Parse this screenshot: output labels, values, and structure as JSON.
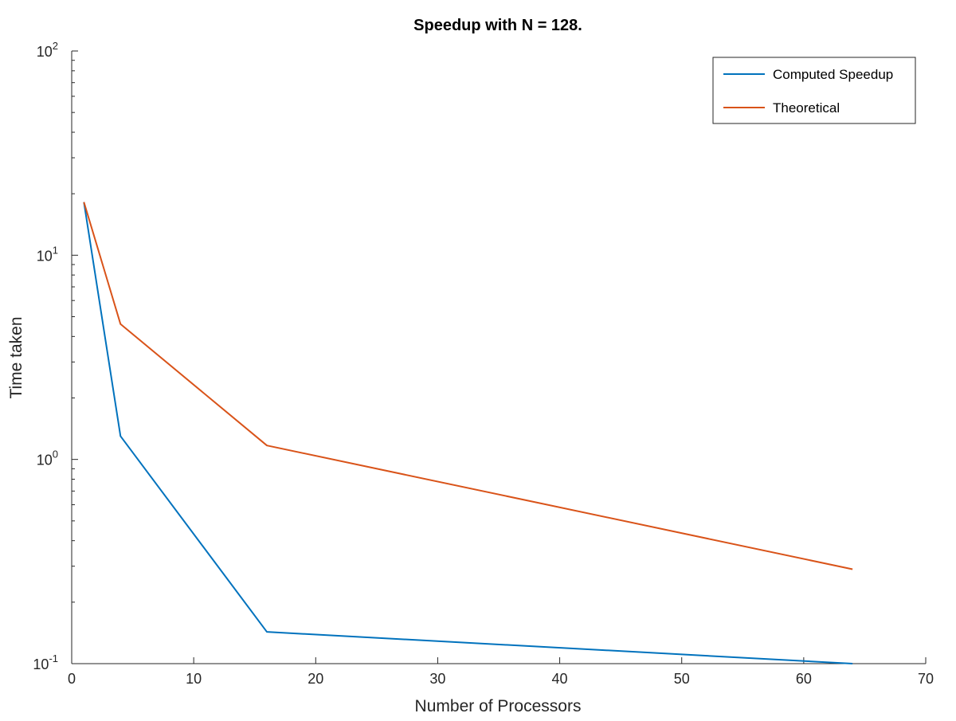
{
  "chart_data": {
    "type": "line",
    "title": "Speedup with N = 128.",
    "xlabel": "Number of Processors",
    "ylabel": "Time taken",
    "xlim": [
      0,
      70
    ],
    "ylim": [
      0.1,
      100
    ],
    "yscale": "log",
    "grid": false,
    "legend_position": "top-right",
    "x_ticks": [
      0,
      10,
      20,
      30,
      40,
      50,
      60,
      70
    ],
    "x_tick_labels": [
      "0",
      "10",
      "20",
      "30",
      "40",
      "50",
      "60",
      "70"
    ],
    "y_ticks": [
      {
        "value": 0.1,
        "base": "10",
        "exp": "-1"
      },
      {
        "value": 1,
        "base": "10",
        "exp": "0"
      },
      {
        "value": 10,
        "base": "10",
        "exp": "1"
      },
      {
        "value": 100,
        "base": "10",
        "exp": "2"
      }
    ],
    "series": [
      {
        "name": "Computed Speedup",
        "color": "#0072BD",
        "x": [
          1,
          4,
          16,
          64
        ],
        "y": [
          18.2,
          1.3,
          0.143,
          0.1
        ]
      },
      {
        "name": "Theoretical",
        "color": "#D95319",
        "x": [
          1,
          4,
          16,
          64
        ],
        "y": [
          18.2,
          4.6,
          1.17,
          0.29
        ]
      }
    ]
  }
}
